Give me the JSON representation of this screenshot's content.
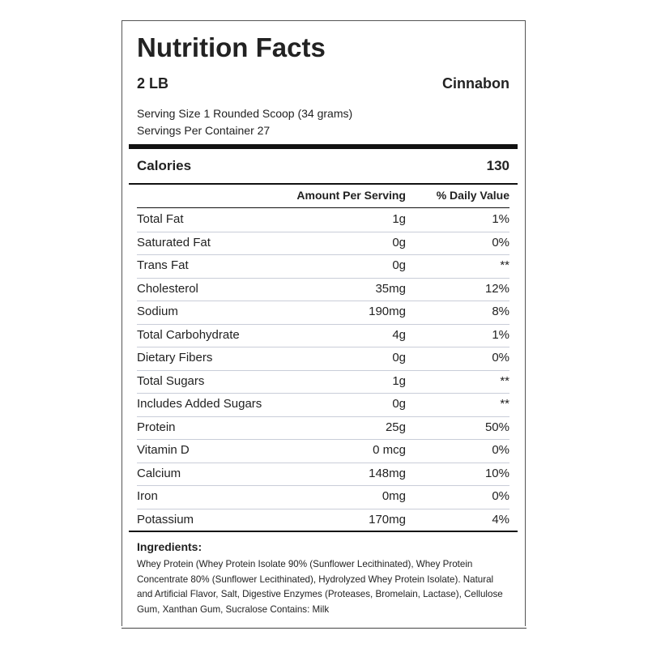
{
  "header": {
    "title": "Nutrition Facts",
    "size": "2 LB",
    "flavor": "Cinnabon",
    "serving_size": "Serving Size 1 Rounded Scoop (34 grams)",
    "servings_per_container": "Servings Per Container 27"
  },
  "calories": {
    "label": "Calories",
    "value": "130"
  },
  "table": {
    "columns": [
      "Amount Per Serving",
      "% Daily Value"
    ],
    "rows": [
      [
        "Total Fat",
        "1g",
        "1%"
      ],
      [
        "Saturated Fat",
        "0g",
        "0%"
      ],
      [
        "Trans Fat",
        "0g",
        "**"
      ],
      [
        "Cholesterol",
        "35mg",
        "12%"
      ],
      [
        "Sodium",
        "190mg",
        "8%"
      ],
      [
        "Total Carbohydrate",
        "4g",
        "1%"
      ],
      [
        "Dietary Fibers",
        "0g",
        "0%"
      ],
      [
        "Total Sugars",
        "1g",
        "**"
      ],
      [
        "Includes Added Sugars",
        "0g",
        "**"
      ],
      [
        "Protein",
        "25g",
        "50%"
      ],
      [
        "Vitamin D",
        "0 mcg",
        "0%"
      ],
      [
        "Calcium",
        "148mg",
        "10%"
      ],
      [
        "Iron",
        "0mg",
        "0%"
      ],
      [
        "Potassium",
        "170mg",
        "4%"
      ]
    ]
  },
  "ingredients": {
    "title": "Ingredients:",
    "text": "Whey Protein (Whey Protein Isolate 90% (Sunflower Lecithinated), Whey Protein Concentrate 80% (Sunflower Lecithinated), Hydrolyzed Whey Protein Isolate). Natural and Artificial Flavor, Salt, Digestive Enzymes (Proteases, Bromelain, Lactase), Cellulose Gum, Xanthan Gum, Sucralose Contains: Milk"
  }
}
